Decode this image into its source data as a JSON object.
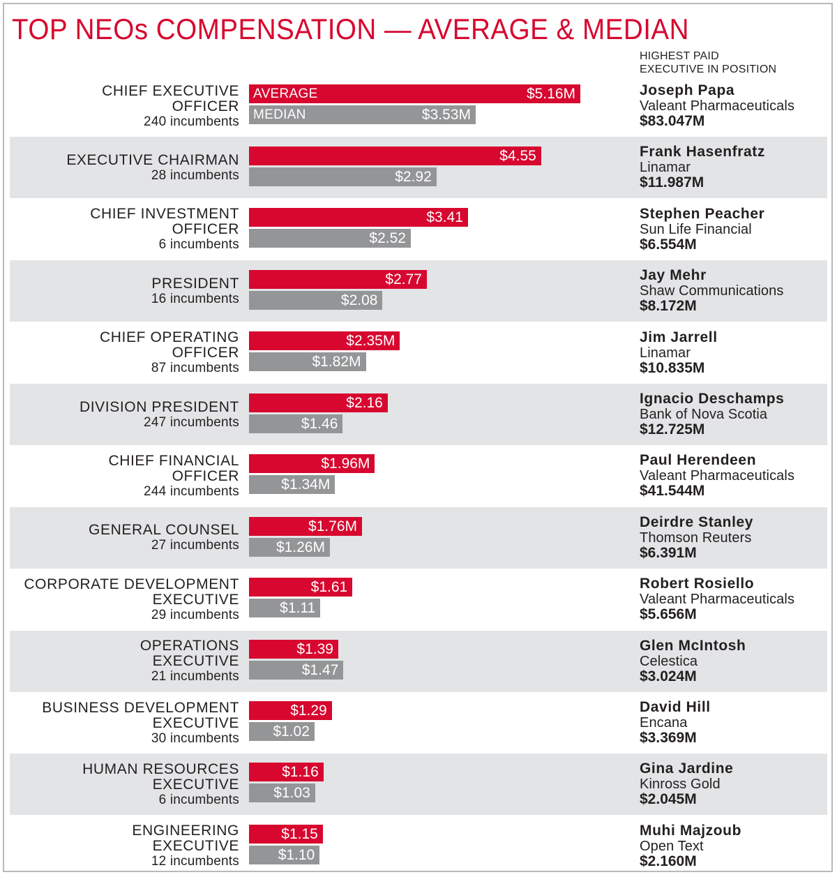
{
  "chart_data": {
    "type": "bar",
    "orientation": "horizontal",
    "title": "TOP NEOs COMPENSATION — AVERAGE & MEDIAN",
    "highest_paid_header": [
      "HIGHEST PAID",
      "EXECUTIVE IN POSITION"
    ],
    "legend": {
      "average": "AVERAGE",
      "median": "MEDIAN"
    },
    "xlim": [
      0,
      5.16
    ],
    "colors": {
      "average": "#d7072f",
      "median": "#949597",
      "title": "#d7072f",
      "row_shade": "#e3e4e6"
    },
    "series": [
      {
        "name": "AVERAGE",
        "values": [
          5.16,
          4.55,
          3.41,
          2.77,
          2.35,
          2.16,
          1.96,
          1.76,
          1.61,
          1.39,
          1.29,
          1.16,
          1.15
        ]
      },
      {
        "name": "MEDIAN",
        "values": [
          3.53,
          2.92,
          2.52,
          2.08,
          1.82,
          1.46,
          1.34,
          1.26,
          1.11,
          1.47,
          1.02,
          1.03,
          1.1
        ]
      }
    ],
    "rows": [
      {
        "label": [
          "CHIEF EXECUTIVE",
          "OFFICER"
        ],
        "incumbents": "240 incumbents",
        "avg": 5.16,
        "med": 3.53,
        "avg_label": "$5.16M",
        "med_label": "$3.53M",
        "hp_name": "Joseph Papa",
        "hp_company": "Valeant Pharmaceuticals",
        "hp_amount": "$83.047M"
      },
      {
        "label": [
          "EXECUTIVE CHAIRMAN"
        ],
        "incumbents": "28 incumbents",
        "avg": 4.55,
        "med": 2.92,
        "avg_label": "$4.55",
        "med_label": "$2.92",
        "hp_name": "Frank Hasenfratz",
        "hp_company": "Linamar",
        "hp_amount": "$11.987M"
      },
      {
        "label": [
          "CHIEF INVESTMENT",
          "OFFICER"
        ],
        "incumbents": "6 incumbents",
        "avg": 3.41,
        "med": 2.52,
        "avg_label": "$3.41",
        "med_label": "$2.52",
        "hp_name": "Stephen Peacher",
        "hp_company": "Sun Life Financial",
        "hp_amount": "$6.554M"
      },
      {
        "label": [
          "PRESIDENT"
        ],
        "incumbents": "16 incumbents",
        "avg": 2.77,
        "med": 2.08,
        "avg_label": "$2.77",
        "med_label": "$2.08",
        "hp_name": "Jay Mehr",
        "hp_company": "Shaw Communications",
        "hp_amount": "$8.172M"
      },
      {
        "label": [
          "CHIEF OPERATING",
          "OFFICER"
        ],
        "incumbents": "87 incumbents",
        "avg": 2.35,
        "med": 1.82,
        "avg_label": "$2.35M",
        "med_label": "$1.82M",
        "hp_name": "Jim Jarrell",
        "hp_company": "Linamar",
        "hp_amount": "$10.835M"
      },
      {
        "label": [
          "DIVISION PRESIDENT"
        ],
        "incumbents": "247 incumbents",
        "avg": 2.16,
        "med": 1.46,
        "avg_label": "$2.16",
        "med_label": "$1.46",
        "hp_name": "Ignacio Deschamps",
        "hp_company": "Bank of Nova Scotia",
        "hp_amount": "$12.725M"
      },
      {
        "label": [
          "CHIEF FINANCIAL",
          "OFFICER"
        ],
        "incumbents": "244 incumbents",
        "avg": 1.96,
        "med": 1.34,
        "avg_label": "$1.96M",
        "med_label": "$1.34M",
        "hp_name": "Paul Herendeen",
        "hp_company": "Valeant Pharmaceuticals",
        "hp_amount": "$41.544M"
      },
      {
        "label": [
          "GENERAL COUNSEL"
        ],
        "incumbents": "27 incumbents",
        "avg": 1.76,
        "med": 1.26,
        "avg_label": "$1.76M",
        "med_label": "$1.26M",
        "hp_name": "Deirdre Stanley",
        "hp_company": "Thomson Reuters",
        "hp_amount": "$6.391M"
      },
      {
        "label": [
          "CORPORATE DEVELOPMENT",
          "EXECUTIVE"
        ],
        "incumbents": "29 incumbents",
        "avg": 1.61,
        "med": 1.11,
        "avg_label": "$1.61",
        "med_label": "$1.11",
        "hp_name": "Robert Rosiello",
        "hp_company": "Valeant Pharmaceuticals",
        "hp_amount": "$5.656M"
      },
      {
        "label": [
          "OPERATIONS",
          "EXECUTIVE"
        ],
        "incumbents": "21 incumbents",
        "avg": 1.39,
        "med": 1.47,
        "avg_label": "$1.39",
        "med_label": "$1.47",
        "hp_name": "Glen McIntosh",
        "hp_company": "Celestica",
        "hp_amount": "$3.024M"
      },
      {
        "label": [
          "BUSINESS DEVELOPMENT",
          "EXECUTIVE"
        ],
        "incumbents": "30 incumbents",
        "avg": 1.29,
        "med": 1.02,
        "avg_label": "$1.29",
        "med_label": "$1.02",
        "hp_name": "David Hill",
        "hp_company": "Encana",
        "hp_amount": "$3.369M"
      },
      {
        "label": [
          "HUMAN RESOURCES",
          "EXECUTIVE"
        ],
        "incumbents": "6 incumbents",
        "avg": 1.16,
        "med": 1.03,
        "avg_label": "$1.16",
        "med_label": "$1.03",
        "hp_name": "Gina Jardine",
        "hp_company": "Kinross Gold",
        "hp_amount": "$2.045M"
      },
      {
        "label": [
          "ENGINEERING",
          "EXECUTIVE"
        ],
        "incumbents": "12 incumbents",
        "avg": 1.15,
        "med": 1.1,
        "avg_label": "$1.15",
        "med_label": "$1.10",
        "hp_name": "Muhi Majzoub",
        "hp_company": "Open Text",
        "hp_amount": "$2.160M"
      }
    ]
  }
}
